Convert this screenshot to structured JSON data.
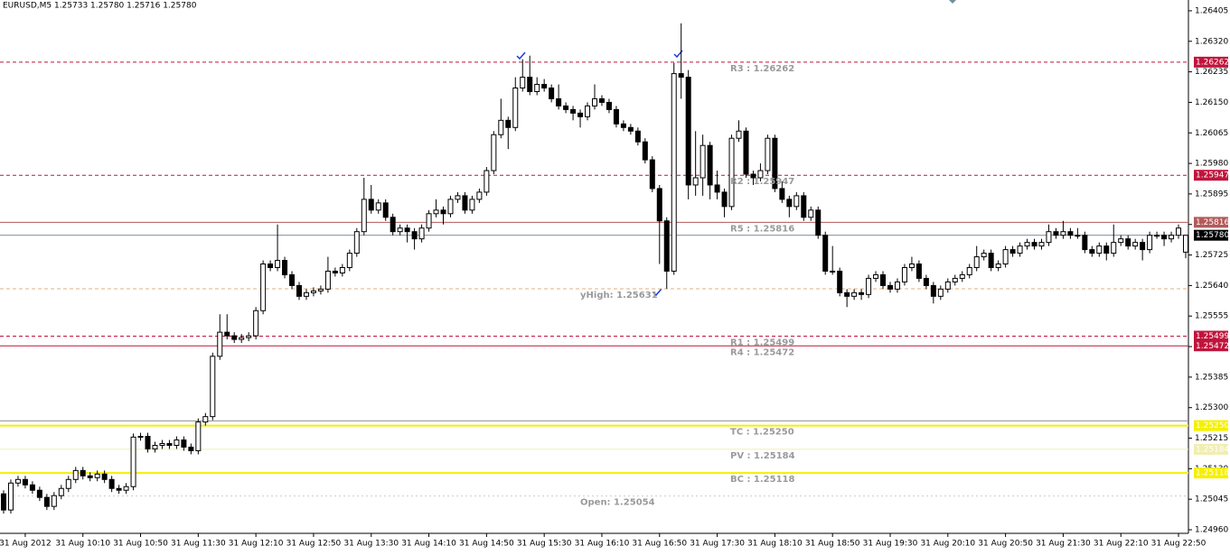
{
  "chart_data": {
    "type": "candlestick",
    "title": "EURUSD,M5  1.25733 1.25780 1.25716 1.25780",
    "categories": [
      null,
      null,
      null,
      "31 Aug 2012",
      null,
      null,
      null,
      null,
      null,
      null,
      null,
      "31 Aug 10:10",
      null,
      null,
      null,
      null,
      null,
      null,
      null,
      "31 Aug 10:50",
      null,
      null,
      null,
      null,
      null,
      null,
      null,
      "31 Aug 11:30",
      null,
      null,
      null,
      null,
      null,
      null,
      null,
      "31 Aug 12:10",
      null,
      null,
      null,
      null,
      null,
      null,
      null,
      "31 Aug 12:50",
      null,
      null,
      null,
      null,
      null,
      null,
      null,
      "31 Aug 13:30",
      null,
      null,
      null,
      null,
      null,
      null,
      null,
      "31 Aug 14:10",
      null,
      null,
      null,
      null,
      null,
      null,
      null,
      "31 Aug 14:50",
      null,
      null,
      null,
      null,
      null,
      null,
      null,
      "31 Aug 15:30",
      null,
      null,
      null,
      null,
      null,
      null,
      null,
      "31 Aug 16:10",
      null,
      null,
      null,
      null,
      null,
      null,
      null,
      "31 Aug 16:50",
      null,
      null,
      null,
      null,
      null,
      null,
      null,
      "31 Aug 17:30",
      null,
      null,
      null,
      null,
      null,
      null,
      null,
      "31 Aug 18:10",
      null,
      null,
      null,
      null,
      null,
      null,
      null,
      "31 Aug 18:50",
      null,
      null,
      null,
      null,
      null,
      null,
      null,
      "31 Aug 19:30",
      null,
      null,
      null,
      null,
      null,
      null,
      null,
      "31 Aug 20:10",
      null,
      null,
      null,
      null,
      null,
      null,
      null,
      "31 Aug 20:50",
      null,
      null,
      null,
      null,
      null,
      null,
      null,
      "31 Aug 21:30",
      null,
      null,
      null,
      null,
      null,
      null,
      null,
      "31 Aug 22:10",
      null,
      null,
      null,
      null,
      null,
      null,
      null,
      "31 Aug 22:50",
      null
    ],
    "ohlc": [
      [
        1.2506,
        1.2507,
        1.25005,
        1.25015
      ],
      [
        1.25015,
        1.251,
        1.25005,
        1.2509
      ],
      [
        1.2509,
        1.2511,
        1.2508,
        1.251
      ],
      [
        1.251,
        1.2511,
        1.25075,
        1.25085
      ],
      [
        1.25085,
        1.25095,
        1.2506,
        1.2507
      ],
      [
        1.2507,
        1.2508,
        1.2504,
        1.2505
      ],
      [
        1.2505,
        1.2506,
        1.25015,
        1.25025
      ],
      [
        1.25025,
        1.25065,
        1.25015,
        1.25055
      ],
      [
        1.25055,
        1.25085,
        1.25045,
        1.25075
      ],
      [
        1.25075,
        1.2511,
        1.25065,
        1.251
      ],
      [
        1.251,
        1.25135,
        1.2509,
        1.25125
      ],
      [
        1.25125,
        1.25135,
        1.251,
        1.2511
      ],
      [
        1.2511,
        1.2512,
        1.25095,
        1.25105
      ],
      [
        1.25105,
        1.25125,
        1.25095,
        1.25115
      ],
      [
        1.25115,
        1.25125,
        1.2509,
        1.251
      ],
      [
        1.251,
        1.2511,
        1.25065,
        1.25075
      ],
      [
        1.25075,
        1.25085,
        1.2506,
        1.2507
      ],
      [
        1.2507,
        1.2509,
        1.2506,
        1.2508
      ],
      [
        1.2508,
        1.25228,
        1.2507,
        1.25218
      ],
      [
        1.25218,
        1.2523,
        1.25208,
        1.2522
      ],
      [
        1.2522,
        1.2523,
        1.25175,
        1.25185
      ],
      [
        1.25185,
        1.25205,
        1.25175,
        1.25195
      ],
      [
        1.25195,
        1.2521,
        1.25185,
        1.252
      ],
      [
        1.252,
        1.2521,
        1.25185,
        1.25195
      ],
      [
        1.25195,
        1.2522,
        1.25185,
        1.2521
      ],
      [
        1.2521,
        1.2522,
        1.2518,
        1.2519
      ],
      [
        1.2519,
        1.252,
        1.2517,
        1.2518
      ],
      [
        1.2518,
        1.2527,
        1.2517,
        1.2526
      ],
      [
        1.2526,
        1.25285,
        1.2525,
        1.25275
      ],
      [
        1.25275,
        1.25453,
        1.25265,
        1.25443
      ],
      [
        1.25443,
        1.2556,
        1.25433,
        1.2551
      ],
      [
        1.2551,
        1.2556,
        1.2549,
        1.255
      ],
      [
        1.255,
        1.2551,
        1.2548,
        1.2549
      ],
      [
        1.2549,
        1.25505,
        1.2548,
        1.25495
      ],
      [
        1.25495,
        1.2551,
        1.25485,
        1.255
      ],
      [
        1.255,
        1.2558,
        1.2549,
        1.2557
      ],
      [
        1.2557,
        1.2571,
        1.2556,
        1.257
      ],
      [
        1.257,
        1.2571,
        1.2568,
        1.2569
      ],
      [
        1.2569,
        1.2581,
        1.2568,
        1.2571
      ],
      [
        1.2571,
        1.2572,
        1.2566,
        1.2567
      ],
      [
        1.2567,
        1.2568,
        1.2563,
        1.2564
      ],
      [
        1.2564,
        1.2565,
        1.256,
        1.2561
      ],
      [
        1.2561,
        1.2563,
        1.256,
        1.2562
      ],
      [
        1.2562,
        1.25635,
        1.2561,
        1.25625
      ],
      [
        1.25625,
        1.2564,
        1.25615,
        1.2563
      ],
      [
        1.2563,
        1.2572,
        1.2562,
        1.2568
      ],
      [
        1.2568,
        1.2569,
        1.25665,
        1.25675
      ],
      [
        1.25675,
        1.257,
        1.25665,
        1.2569
      ],
      [
        1.2569,
        1.2574,
        1.2568,
        1.2573
      ],
      [
        1.2573,
        1.258,
        1.2572,
        1.2579
      ],
      [
        1.2579,
        1.2594,
        1.2578,
        1.2588
      ],
      [
        1.2588,
        1.2592,
        1.2584,
        1.2585
      ],
      [
        1.2585,
        1.2588,
        1.2584,
        1.2587
      ],
      [
        1.2587,
        1.2588,
        1.2582,
        1.2583
      ],
      [
        1.2583,
        1.2584,
        1.2578,
        1.2579
      ],
      [
        1.2579,
        1.2581,
        1.2578,
        1.258
      ],
      [
        1.258,
        1.2581,
        1.2576,
        1.2579
      ],
      [
        1.2579,
        1.258,
        1.2574,
        1.2577
      ],
      [
        1.2577,
        1.2581,
        1.2576,
        1.258
      ],
      [
        1.258,
        1.2585,
        1.2579,
        1.2584
      ],
      [
        1.2584,
        1.2588,
        1.2583,
        1.2585
      ],
      [
        1.2585,
        1.2586,
        1.2581,
        1.2584
      ],
      [
        1.2584,
        1.2589,
        1.2583,
        1.2588
      ],
      [
        1.2588,
        1.259,
        1.2587,
        1.2589
      ],
      [
        1.2589,
        1.259,
        1.2584,
        1.2585
      ],
      [
        1.2585,
        1.2589,
        1.2584,
        1.2588
      ],
      [
        1.2588,
        1.2591,
        1.2587,
        1.259
      ],
      [
        1.259,
        1.2597,
        1.2589,
        1.2596
      ],
      [
        1.2596,
        1.2607,
        1.2595,
        1.2606
      ],
      [
        1.2606,
        1.2616,
        1.2605,
        1.261
      ],
      [
        1.261,
        1.2611,
        1.2602,
        1.2608
      ],
      [
        1.2608,
        1.2622,
        1.2607,
        1.2619
      ],
      [
        1.2619,
        1.2627,
        1.2618,
        1.2622
      ],
      [
        1.2622,
        1.2628,
        1.2617,
        1.2618
      ],
      [
        1.2618,
        1.2622,
        1.2617,
        1.262
      ],
      [
        1.262,
        1.26215,
        1.2618,
        1.2619
      ],
      [
        1.2619,
        1.262,
        1.2615,
        1.2616
      ],
      [
        1.2616,
        1.262,
        1.2613,
        1.2614
      ],
      [
        1.2614,
        1.2615,
        1.2612,
        1.2613
      ],
      [
        1.2613,
        1.2614,
        1.261,
        1.2612
      ],
      [
        1.2612,
        1.2613,
        1.2608,
        1.2611
      ],
      [
        1.2611,
        1.2615,
        1.261,
        1.2614
      ],
      [
        1.2614,
        1.262,
        1.2613,
        1.2616
      ],
      [
        1.2616,
        1.2617,
        1.2614,
        1.2615
      ],
      [
        1.2615,
        1.2616,
        1.2612,
        1.2613
      ],
      [
        1.2613,
        1.2614,
        1.2608,
        1.2609
      ],
      [
        1.2609,
        1.261,
        1.2607,
        1.2608
      ],
      [
        1.2608,
        1.2609,
        1.2606,
        1.2607
      ],
      [
        1.2607,
        1.2608,
        1.2603,
        1.2604
      ],
      [
        1.2604,
        1.2605,
        1.2598,
        1.2599
      ],
      [
        1.2599,
        1.26,
        1.259,
        1.2591
      ],
      [
        1.2591,
        1.2592,
        1.257,
        1.2582
      ],
      [
        1.2582,
        1.2583,
        1.25631,
        1.2568
      ],
      [
        1.2568,
        1.2626,
        1.2567,
        1.2623
      ],
      [
        1.2623,
        1.2637,
        1.2616,
        1.2622
      ],
      [
        1.2622,
        1.2624,
        1.2588,
        1.2592
      ],
      [
        1.2592,
        1.2607,
        1.2589,
        1.2594
      ],
      [
        1.2594,
        1.2606,
        1.2589,
        1.2603
      ],
      [
        1.2603,
        1.2604,
        1.2588,
        1.2592
      ],
      [
        1.2592,
        1.2596,
        1.2588,
        1.259
      ],
      [
        1.259,
        1.2591,
        1.2583,
        1.2586
      ],
      [
        1.2586,
        1.2606,
        1.2585,
        1.2605
      ],
      [
        1.2605,
        1.261,
        1.2604,
        1.2607
      ],
      [
        1.2607,
        1.2608,
        1.2594,
        1.2595
      ],
      [
        1.2595,
        1.2596,
        1.2592,
        1.2594
      ],
      [
        1.2594,
        1.2598,
        1.2593,
        1.2596
      ],
      [
        1.2596,
        1.2606,
        1.2595,
        1.2605
      ],
      [
        1.2605,
        1.2606,
        1.259,
        1.2591
      ],
      [
        1.2591,
        1.2593,
        1.2587,
        1.2588
      ],
      [
        1.2588,
        1.2589,
        1.2583,
        1.2586
      ],
      [
        1.2586,
        1.259,
        1.2585,
        1.2589
      ],
      [
        1.2589,
        1.259,
        1.2582,
        1.2583
      ],
      [
        1.2583,
        1.2586,
        1.2582,
        1.2585
      ],
      [
        1.2585,
        1.2586,
        1.2577,
        1.2578
      ],
      [
        1.2578,
        1.2579,
        1.2567,
        1.2568
      ],
      [
        1.2568,
        1.2575,
        1.2567,
        1.2568
      ],
      [
        1.2568,
        1.2569,
        1.2561,
        1.2562
      ],
      [
        1.2562,
        1.2563,
        1.2558,
        1.2561
      ],
      [
        1.2561,
        1.2563,
        1.256,
        1.2562
      ],
      [
        1.2562,
        1.2563,
        1.256,
        1.25615
      ],
      [
        1.25615,
        1.2567,
        1.25605,
        1.2566
      ],
      [
        1.2566,
        1.2568,
        1.2565,
        1.2567
      ],
      [
        1.2567,
        1.2568,
        1.2563,
        1.2564
      ],
      [
        1.2564,
        1.2565,
        1.2562,
        1.2563
      ],
      [
        1.2563,
        1.2566,
        1.2562,
        1.2565
      ],
      [
        1.2565,
        1.257,
        1.2564,
        1.2569
      ],
      [
        1.2569,
        1.2572,
        1.2568,
        1.257
      ],
      [
        1.257,
        1.2571,
        1.2565,
        1.2566
      ],
      [
        1.2566,
        1.2567,
        1.2563,
        1.2564
      ],
      [
        1.2564,
        1.2565,
        1.2559,
        1.2561
      ],
      [
        1.2561,
        1.2564,
        1.256,
        1.2563
      ],
      [
        1.2563,
        1.2566,
        1.2562,
        1.2565
      ],
      [
        1.2565,
        1.2567,
        1.2564,
        1.2566
      ],
      [
        1.2566,
        1.2568,
        1.2565,
        1.2567
      ],
      [
        1.2567,
        1.257,
        1.2566,
        1.2569
      ],
      [
        1.2569,
        1.2575,
        1.2568,
        1.2572
      ],
      [
        1.2572,
        1.2574,
        1.2571,
        1.2573
      ],
      [
        1.2573,
        1.2574,
        1.2568,
        1.2569
      ],
      [
        1.2569,
        1.2571,
        1.2568,
        1.257
      ],
      [
        1.257,
        1.2575,
        1.2569,
        1.2574
      ],
      [
        1.2574,
        1.2575,
        1.2572,
        1.2573
      ],
      [
        1.2573,
        1.2576,
        1.2572,
        1.2575
      ],
      [
        1.2575,
        1.2577,
        1.2574,
        1.2576
      ],
      [
        1.2576,
        1.2577,
        1.2574,
        1.2575
      ],
      [
        1.2575,
        1.2577,
        1.2574,
        1.2576
      ],
      [
        1.2576,
        1.2581,
        1.2575,
        1.2579
      ],
      [
        1.2579,
        1.258,
        1.2577,
        1.2578
      ],
      [
        1.2578,
        1.2582,
        1.2577,
        1.2579
      ],
      [
        1.2579,
        1.258,
        1.2577,
        1.2578
      ],
      [
        1.2578,
        1.258,
        1.2577,
        1.2578
      ],
      [
        1.2578,
        1.2579,
        1.2573,
        1.2574
      ],
      [
        1.2574,
        1.2575,
        1.2572,
        1.2573
      ],
      [
        1.2573,
        1.2576,
        1.2572,
        1.2575
      ],
      [
        1.2575,
        1.2576,
        1.2571,
        1.2573
      ],
      [
        1.2573,
        1.2581,
        1.2572,
        1.2576
      ],
      [
        1.2576,
        1.2578,
        1.2575,
        1.2577
      ],
      [
        1.2577,
        1.2578,
        1.2574,
        1.2575
      ],
      [
        1.2575,
        1.2577,
        1.2574,
        1.2576
      ],
      [
        1.2576,
        1.2577,
        1.2571,
        1.2574
      ],
      [
        1.2574,
        1.2579,
        1.2573,
        1.2578
      ],
      [
        1.2578,
        1.2579,
        1.2577,
        1.2578
      ],
      [
        1.2578,
        1.2579,
        1.2575,
        1.2577
      ],
      [
        1.2577,
        1.2579,
        1.2576,
        1.2578
      ],
      [
        1.2578,
        1.2581,
        1.2577,
        1.258
      ],
      [
        1.25733,
        1.2578,
        1.25716,
        1.2578
      ]
    ],
    "up_color": "#ffffff",
    "down_color": "#000000",
    "ylim": [
      1.2495,
      1.26435
    ],
    "yticks": [
      1.26405,
      {
        "value": 1.2632,
        "label": "1.26320"
      },
      1.26235,
      {
        "value": 1.2615,
        "label": "1.26150"
      },
      1.26065,
      {
        "value": 1.2598,
        "label": "1.25980"
      },
      1.25895,
      {
        "value": 1.2581,
        "label": "1.25810"
      },
      1.25725,
      {
        "value": 1.2564,
        "label": "1.25640"
      },
      1.25555,
      {
        "value": 1.2547,
        "label": "1.25470"
      },
      1.25385,
      {
        "value": 1.253,
        "label": "1.25300"
      },
      1.25215,
      {
        "value": 1.2513,
        "label": "1.25130"
      },
      1.25045,
      {
        "value": 1.2496,
        "label": "1.24960"
      }
    ],
    "levels": [
      {
        "label": "R3 : 1.26262",
        "value": 1.26262,
        "tag": "1.26262",
        "color": "#c0143c",
        "style": "dashed",
        "width": 1
      },
      {
        "label": "R2 : 1.25947",
        "value": 1.25947,
        "tag": "1.25947",
        "color": "#c0143c",
        "style": "dashed",
        "width": 1
      },
      {
        "label": "R5 : 1.25816",
        "value": 1.25816,
        "tag": "1.25816",
        "color": "#b35a5a",
        "style": "solid",
        "width": 1
      },
      {
        "value": 1.2578,
        "tag": "1.25780",
        "color": "#8090a0",
        "style": "solid",
        "width": 1,
        "tag_color": "#000000"
      },
      {
        "label": "yHigh: 1.25631",
        "value": 1.25631,
        "color": "#e0b080",
        "style": "dashed",
        "width": 1
      },
      {
        "label": "R1 : 1.25499",
        "value": 1.25499,
        "tag": "1.25499",
        "color": "#c0143c",
        "style": "dashed",
        "width": 1
      },
      {
        "label": "R4 : 1.25472",
        "value": 1.25472,
        "tag": "1.25472",
        "color": "#c0143c",
        "style": "solid",
        "width": 1
      },
      {
        "value": 1.25263,
        "color": "#909090",
        "style": "solid",
        "width": 1
      },
      {
        "label": "TC : 1.25250",
        "value": 1.2525,
        "tag": "1.25250",
        "color": "#f5f000",
        "style": "solid",
        "width": 2
      },
      {
        "label": "PV : 1.25184",
        "value": 1.25184,
        "tag": "1.25184",
        "color": "#f0eeb0",
        "style": "solid",
        "width": 1
      },
      {
        "label": "BC : 1.25118",
        "value": 1.25118,
        "tag": "1.25118",
        "color": "#f5f000",
        "style": "solid",
        "width": 2
      },
      {
        "label": "Open: 1.25054",
        "value": 1.25054,
        "color": "#cccccc",
        "style": "dotted",
        "width": 1
      }
    ]
  }
}
